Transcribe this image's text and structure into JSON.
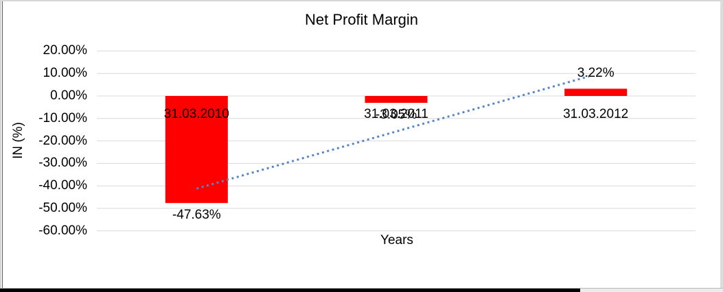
{
  "chart_data": {
    "type": "bar",
    "title": "Net Profit Margin",
    "xlabel": "Years",
    "ylabel": "IN (%)",
    "categories": [
      "31.03.2010",
      "31.03.2011",
      "31.03.2012"
    ],
    "values": [
      -47.63,
      -3.05,
      3.22
    ],
    "data_labels": [
      "-47.63%",
      "-3.05%",
      "3.22%"
    ],
    "ylim": [
      -60,
      20
    ],
    "ytick_step": 10,
    "ytick_labels": [
      "20.00%",
      "10.00%",
      "0.00%",
      "-10.00%",
      "-20.00%",
      "-30.00%",
      "-40.00%",
      "-50.00%",
      "-60.00%"
    ],
    "grid": true,
    "legend": "none",
    "bar_color": "#FF0000",
    "gridline_color": "#d9d9d9",
    "trendline": {
      "type": "linear",
      "style": "dotted",
      "color": "#5585C8",
      "start_value": -41.2,
      "end_value": 9.6
    }
  },
  "colors": {
    "background": "#ffffff",
    "text": "#000000",
    "edge_grey": "#d6d6d6",
    "edge_dark": "#5a5a5a",
    "bottom_bar": "#000000"
  }
}
